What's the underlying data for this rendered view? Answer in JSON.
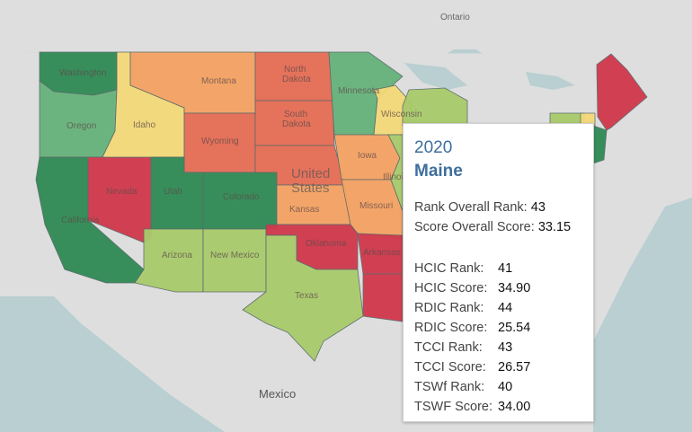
{
  "map": {
    "labels": {
      "ontario": "Ontario",
      "mexico": "Mexico",
      "us_line1": "United",
      "us_line2": "States",
      "washington": "Washington",
      "oregon": "Oregon",
      "california": "California",
      "nevada": "Nevada",
      "idaho": "Idaho",
      "montana": "Montana",
      "wyoming": "Wyoming",
      "utah": "Utah",
      "colorado": "Colorado",
      "arizona": "Arizona",
      "new_mexico": "New Mexico",
      "north_dakota_1": "North",
      "north_dakota_2": "Dakota",
      "south_dakota_1": "South",
      "south_dakota_2": "Dakota",
      "kansas": "Kansas",
      "oklahoma": "Oklahoma",
      "texas": "Texas",
      "minnesota": "Minnesota",
      "iowa": "Iowa",
      "missouri": "Missouri",
      "arkansas": "Arkansas",
      "wisconsin": "Wisconsin",
      "illinois": "Illinois"
    },
    "colors": {
      "dark_green": "#2f8a55",
      "mid_green": "#66b27a",
      "light_green": "#a9ca6c",
      "pale_yellow": "#f4d978",
      "light_orange": "#f5a363",
      "orange_red": "#e66d55",
      "red": "#d1384b",
      "water": "#b9cfd2",
      "land": "#dedede"
    }
  },
  "tooltip": {
    "year": "2020",
    "state": "Maine",
    "overall_rank_label": "Rank Overall Rank:",
    "overall_rank_value": "43",
    "overall_score_label": "Score Overall Score:",
    "overall_score_value": "33.15",
    "metrics": [
      {
        "label": "HCIC Rank:",
        "value": "41"
      },
      {
        "label": "HCIC Score:",
        "value": "34.90"
      },
      {
        "label": "RDIC Rank:",
        "value": "44"
      },
      {
        "label": "RDIC Score:",
        "value": "25.54"
      },
      {
        "label": "TCCI Rank:",
        "value": "43"
      },
      {
        "label": "TCCI Score:",
        "value": "26.57"
      },
      {
        "label": "TSWf Rank:",
        "value": "40"
      },
      {
        "label": "TSWF Score:",
        "value": "34.00"
      }
    ]
  }
}
